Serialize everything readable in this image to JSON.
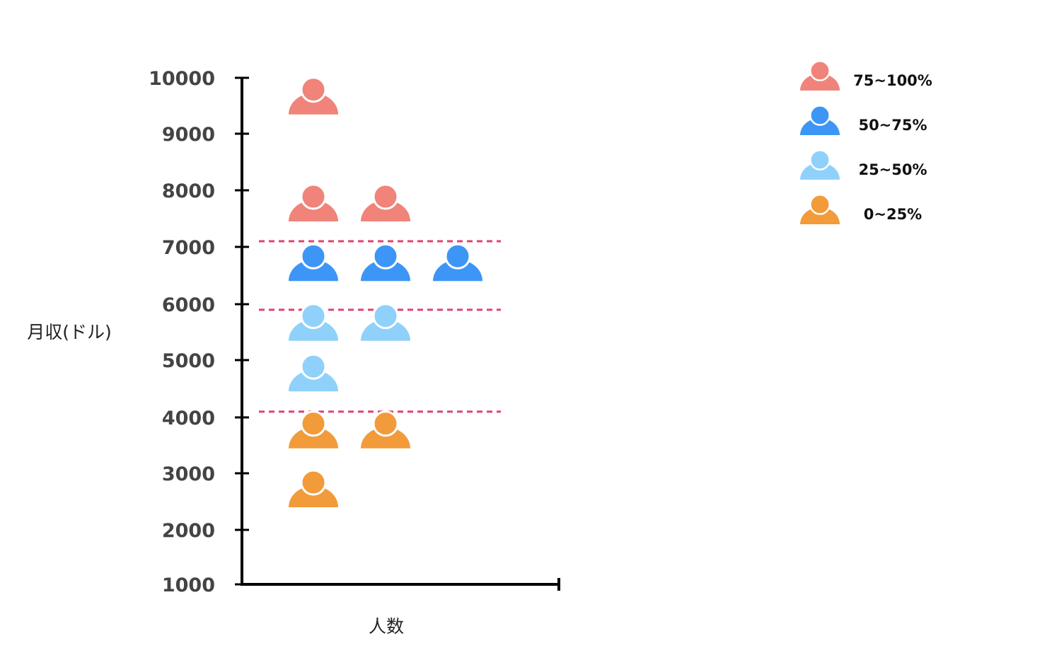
{
  "chart_data": {
    "type": "scatter",
    "title": "",
    "xlabel": "人数",
    "ylabel": "月収(ドル)",
    "ylim": [
      1000,
      10000
    ],
    "yticks": [
      "10000",
      "9000",
      "8000",
      "7000",
      "6000",
      "5000",
      "4000",
      "3000",
      "2000",
      "1000"
    ],
    "thresholds": [
      4100,
      5900,
      7100
    ],
    "threshold_color": "#e0426e",
    "legend_position": "top-right",
    "series": [
      {
        "name": "75~100%",
        "color": "#f0847a",
        "points": [
          {
            "x": 1,
            "y": 9700
          },
          {
            "x": 1,
            "y": 7800
          },
          {
            "x": 2,
            "y": 7800
          }
        ]
      },
      {
        "name": "50~75%",
        "color": "#3d96f5",
        "points": [
          {
            "x": 1,
            "y": 6750
          },
          {
            "x": 2,
            "y": 6750
          },
          {
            "x": 3,
            "y": 6750
          }
        ]
      },
      {
        "name": "25~50%",
        "color": "#8fd1fa",
        "points": [
          {
            "x": 1,
            "y": 5700
          },
          {
            "x": 2,
            "y": 5700
          },
          {
            "x": 1,
            "y": 4800
          }
        ]
      },
      {
        "name": "0~25%",
        "color": "#f29b3a",
        "points": [
          {
            "x": 1,
            "y": 3800
          },
          {
            "x": 2,
            "y": 3800
          },
          {
            "x": 1,
            "y": 2750
          }
        ]
      }
    ]
  }
}
